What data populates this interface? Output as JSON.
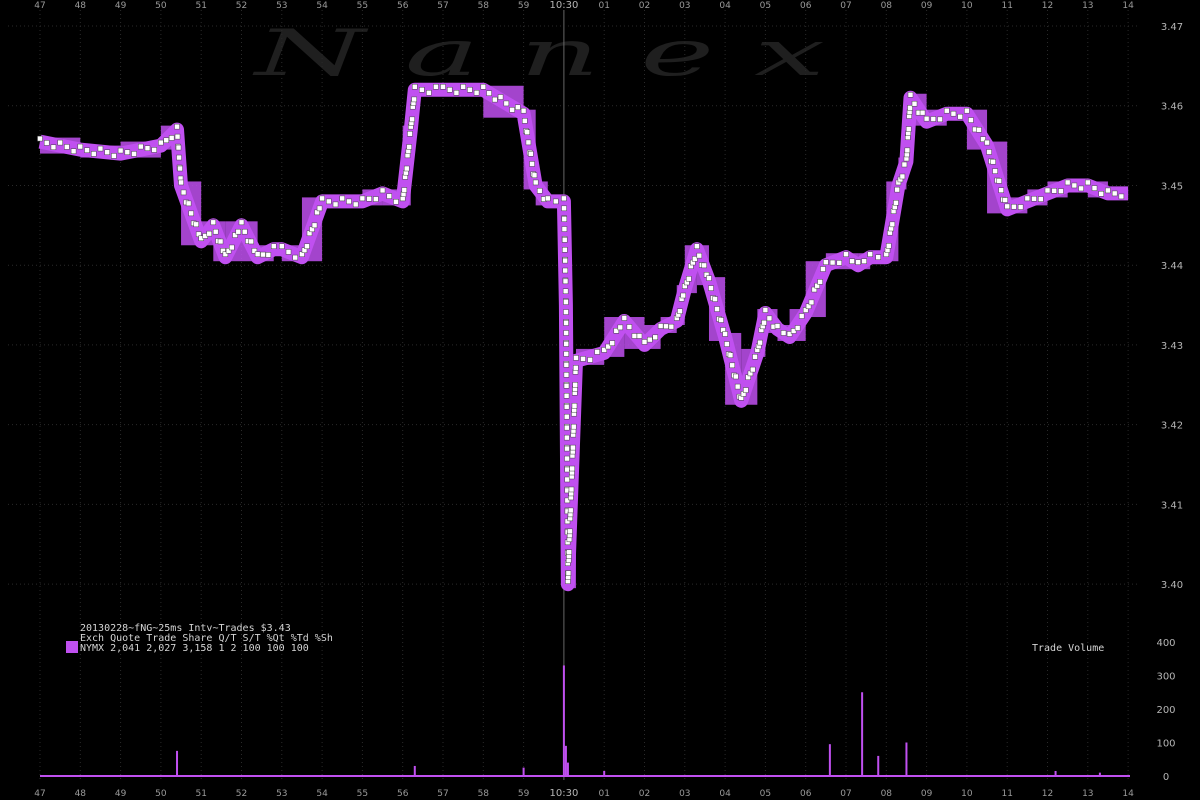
{
  "watermark": "N a n e x",
  "legend": {
    "line1": "20130228~fNG~25ms Intv~Trades $3.43",
    "line2": "Exch Quote Trade Share  Q/T   S/T  %Qt %Td %Sh",
    "line3": "NYMX 2,041 2,027 3,158    1     2 100 100 100"
  },
  "colors": {
    "quote_band": "#c050f0",
    "trade_marker": "#ffffff",
    "volume": "#c050f0",
    "background": "#000000",
    "grid": "#2a2a2a"
  },
  "chart_data": [
    {
      "type": "line",
      "title": "",
      "description_series": "NYMX natural gas futures trades with quote band",
      "x_tick_labels": [
        "47",
        "48",
        "49",
        "50",
        "51",
        "52",
        "53",
        "54",
        "55",
        "56",
        "57",
        "58",
        "59",
        "10:30",
        "01",
        "02",
        "03",
        "04",
        "05",
        "06",
        "07",
        "08",
        "09",
        "10",
        "11",
        "12",
        "13",
        "14"
      ],
      "y_tick_labels": [
        "3.40",
        "3.41",
        "3.42",
        "3.43",
        "3.44",
        "3.45",
        "3.46",
        "3.47"
      ],
      "ylim": [
        3.394,
        3.471
      ],
      "grid": true,
      "series": [
        {
          "x": [
            "47",
            "48",
            "49",
            "50",
            "50.4",
            "50.5",
            "51",
            "51.3",
            "51.6",
            "52",
            "52.4",
            "52.8",
            "53",
            "53.5",
            "54",
            "55",
            "55.5",
            "56",
            "56.2",
            "56.3",
            "57",
            "58",
            "59",
            "59.3",
            "59.6",
            "10:30",
            "10:30.05",
            "10:30.1",
            "10:30.3",
            "01",
            "01.5",
            "02",
            "02.4",
            "02.8",
            "03",
            "03.3",
            "03.6",
            "04",
            "04.4",
            "04.8",
            "05",
            "05.3",
            "05.6",
            "06",
            "06.5",
            "07",
            "07.3",
            "07.6",
            "08",
            "08.3",
            "08.5",
            "08.6",
            "09",
            "09.5",
            "10",
            "10.5",
            "11",
            "11.5",
            "12",
            "12.5",
            "13",
            "13.5",
            "14"
          ],
          "y": [
            3.4555,
            3.4545,
            3.454,
            3.455,
            3.457,
            3.45,
            3.443,
            3.445,
            3.441,
            3.445,
            3.441,
            3.442,
            3.442,
            3.441,
            3.448,
            3.448,
            3.449,
            3.448,
            3.457,
            3.462,
            3.462,
            3.462,
            3.459,
            3.45,
            3.448,
            3.448,
            3.435,
            3.4,
            3.428,
            3.429,
            3.433,
            3.43,
            3.432,
            3.433,
            3.437,
            3.442,
            3.438,
            3.431,
            3.423,
            3.429,
            3.434,
            3.432,
            3.431,
            3.434,
            3.44,
            3.441,
            3.44,
            3.441,
            3.441,
            3.45,
            3.453,
            3.461,
            3.458,
            3.459,
            3.459,
            3.455,
            3.447,
            3.448,
            3.449,
            3.45,
            3.45,
            3.449,
            3.449
          ]
        }
      ]
    },
    {
      "type": "bar",
      "title": "Trade Volume",
      "x_tick_labels": [
        "47",
        "48",
        "49",
        "50",
        "51",
        "52",
        "53",
        "54",
        "55",
        "56",
        "57",
        "58",
        "59",
        "10:30",
        "01",
        "02",
        "03",
        "04",
        "05",
        "06",
        "07",
        "08",
        "09",
        "10",
        "11",
        "12",
        "13",
        "14"
      ],
      "y_tick_labels": [
        "0",
        "100",
        "200",
        "300",
        "400"
      ],
      "ylim": [
        0,
        400
      ],
      "spikes": [
        {
          "x": "50.4",
          "value": 75
        },
        {
          "x": "56.3",
          "value": 30
        },
        {
          "x": "59",
          "value": 25
        },
        {
          "x": "10:30",
          "value": 330
        },
        {
          "x": "10:30.05",
          "value": 90
        },
        {
          "x": "10:30.1",
          "value": 40
        },
        {
          "x": "01",
          "value": 15
        },
        {
          "x": "06.6",
          "value": 95
        },
        {
          "x": "07.4",
          "value": 250
        },
        {
          "x": "07.8",
          "value": 60
        },
        {
          "x": "08.5",
          "value": 100
        },
        {
          "x": "12.2",
          "value": 15
        },
        {
          "x": "13.3",
          "value": 10
        }
      ]
    }
  ]
}
